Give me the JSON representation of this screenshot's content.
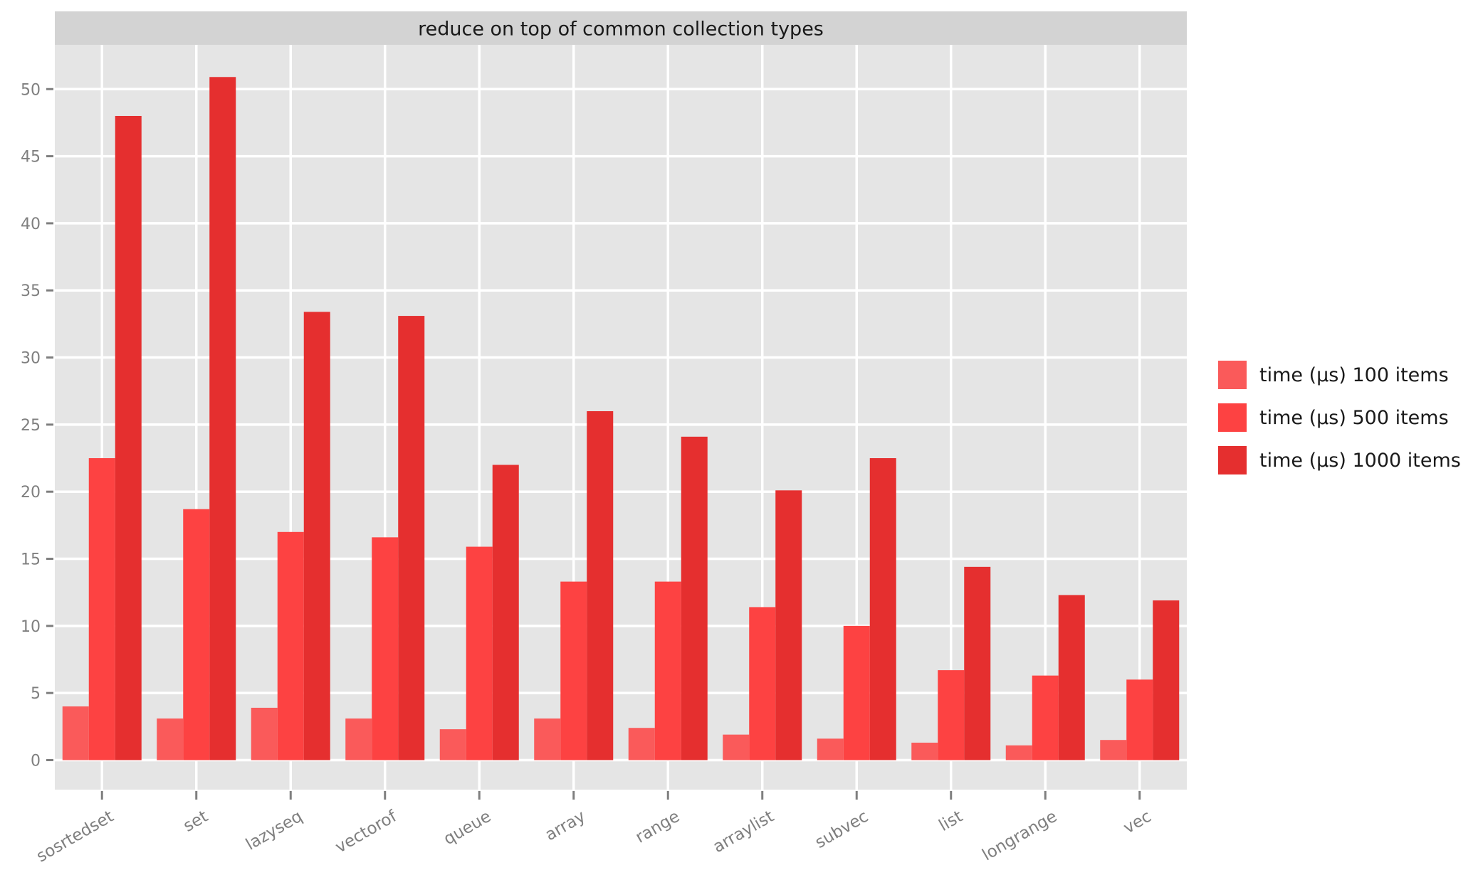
{
  "chart_data": {
    "type": "bar",
    "title": "reduce on top of common collection types",
    "xlabel": "",
    "ylabel": "",
    "categories": [
      "sosrtedset",
      "set",
      "lazyseq",
      "vectorof",
      "queue",
      "array",
      "range",
      "arraylist",
      "subvec",
      "list",
      "longrange",
      "vec"
    ],
    "series": [
      {
        "name": "time (µs) 100 items",
        "color": "#fa5a5a",
        "values": [
          4.0,
          3.1,
          3.9,
          3.1,
          2.3,
          3.1,
          2.4,
          1.9,
          1.6,
          1.3,
          1.1,
          1.5
        ]
      },
      {
        "name": "time (µs) 500 items",
        "color": "#fd4242",
        "values": [
          22.5,
          18.7,
          17.0,
          16.6,
          15.9,
          13.3,
          13.3,
          11.4,
          10.0,
          6.7,
          6.3,
          6.0
        ]
      },
      {
        "name": "time (µs) 1000 items",
        "color": "#e52f2f",
        "values": [
          48.0,
          50.9,
          33.4,
          33.1,
          22.0,
          26.0,
          24.1,
          20.1,
          22.5,
          14.4,
          12.3,
          11.9
        ]
      }
    ],
    "ylim": [
      -2.2,
      53.3
    ],
    "yticks": [
      "0",
      "5",
      "10",
      "15",
      "20",
      "25",
      "30",
      "35",
      "40",
      "45",
      "50"
    ],
    "grid": true,
    "legend_position": "right",
    "panel_color": "#e5e5e5",
    "strip_color": "#d3d3d3"
  }
}
